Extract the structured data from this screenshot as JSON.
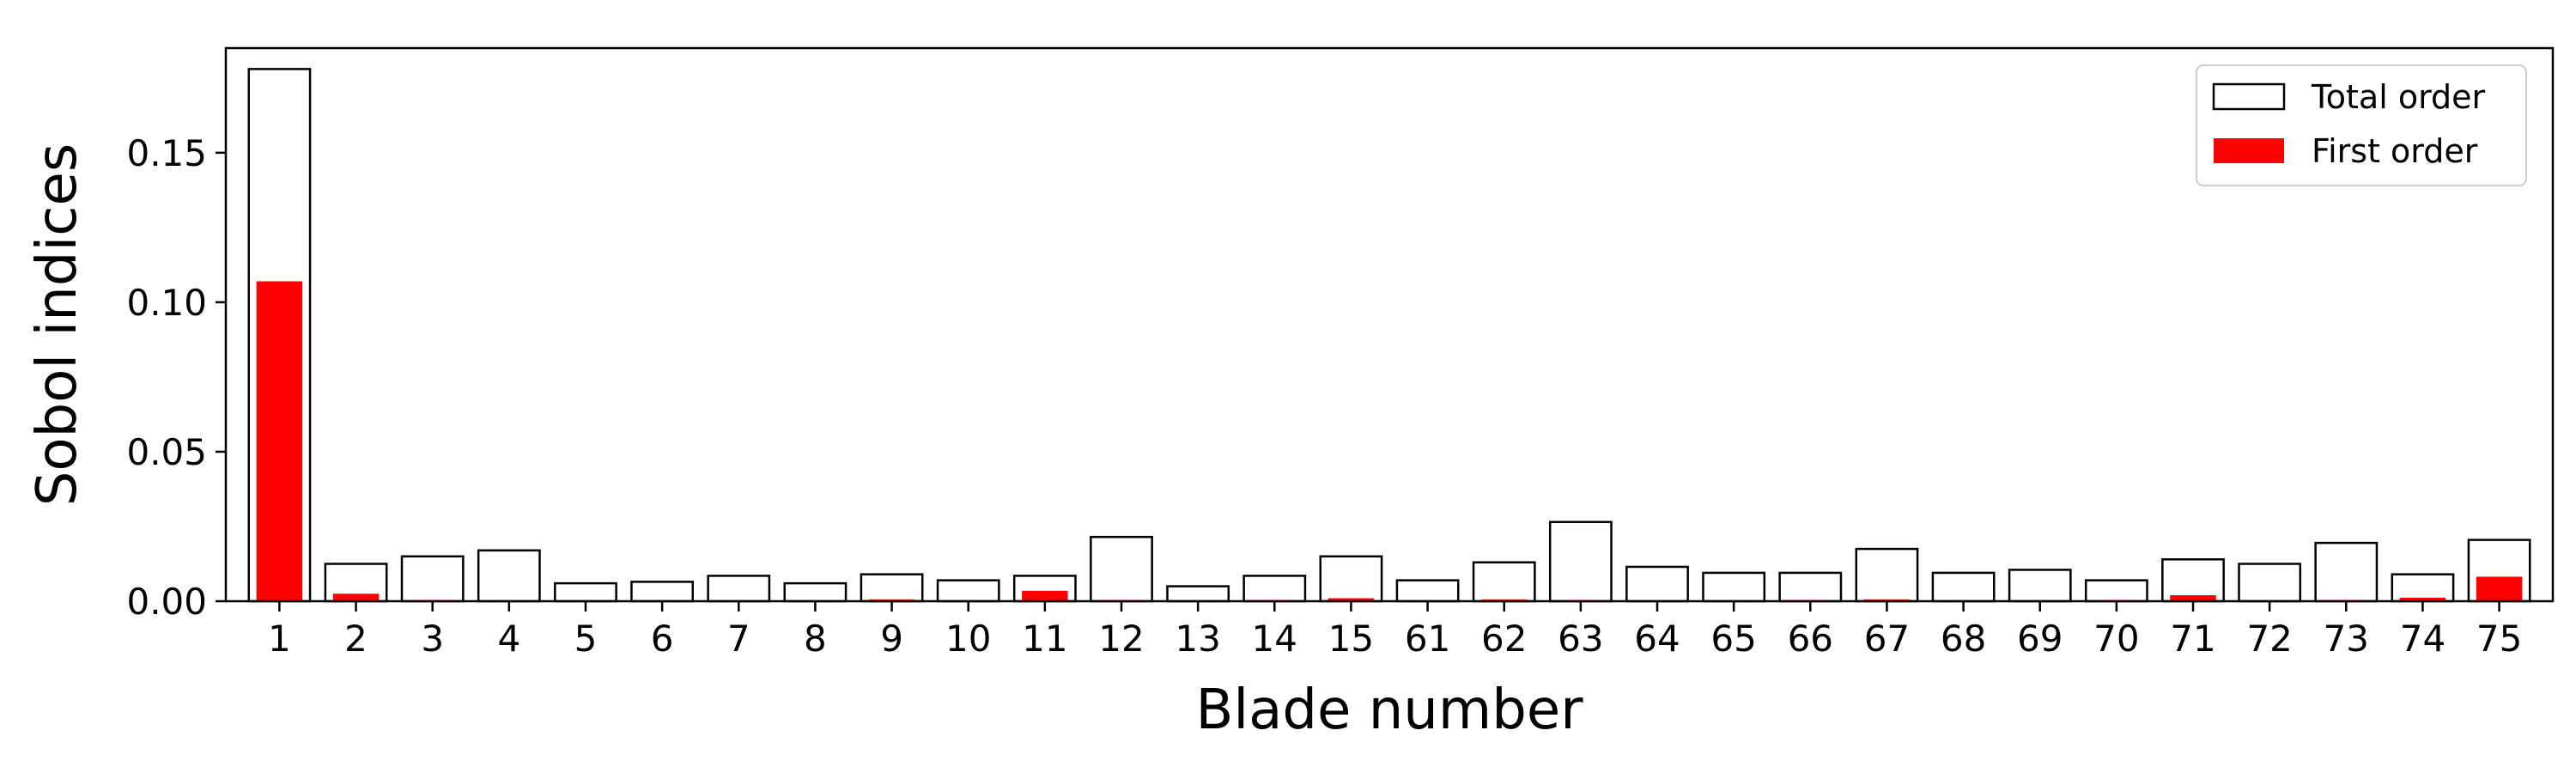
{
  "chart_data": {
    "type": "bar",
    "xlabel": "Blade number",
    "ylabel": "Sobol indices",
    "ylim": [
      0,
      0.185
    ],
    "yticks": [
      "0.00",
      "0.05",
      "0.10",
      "0.15"
    ],
    "ytick_values": [
      0,
      0.05,
      0.1,
      0.15
    ],
    "legend_position": "top-right",
    "grid": false,
    "categories": [
      "1",
      "2",
      "3",
      "4",
      "5",
      "6",
      "7",
      "8",
      "9",
      "10",
      "11",
      "12",
      "13",
      "14",
      "15",
      "61",
      "62",
      "63",
      "64",
      "65",
      "66",
      "67",
      "68",
      "69",
      "70",
      "71",
      "72",
      "73",
      "74",
      "75"
    ],
    "series": [
      {
        "name": "Total order",
        "style": "outline",
        "color": "#000000",
        "values": [
          0.178,
          0.0125,
          0.015,
          0.017,
          0.006,
          0.0065,
          0.0085,
          0.006,
          0.009,
          0.007,
          0.0085,
          0.0215,
          0.005,
          0.0085,
          0.015,
          0.007,
          0.013,
          0.0265,
          0.0115,
          0.0095,
          0.0095,
          0.0175,
          0.0095,
          0.0105,
          0.007,
          0.014,
          0.0125,
          0.0195,
          0.009,
          0.0205
        ]
      },
      {
        "name": "First order",
        "style": "filled",
        "color": "#ff0000",
        "values": [
          0.107,
          0.0025,
          0.0004,
          0.0002,
          0.0002,
          0.0002,
          0.0002,
          0.0002,
          0.0006,
          0.0002,
          0.0035,
          0.0004,
          0.0002,
          0.0004,
          0.001,
          0.0002,
          0.0006,
          0.0004,
          0.0002,
          0.0002,
          0.0004,
          0.0006,
          0.0002,
          0.0002,
          0.0004,
          0.002,
          0.0002,
          0.0004,
          0.0012,
          0.0082
        ]
      }
    ]
  }
}
